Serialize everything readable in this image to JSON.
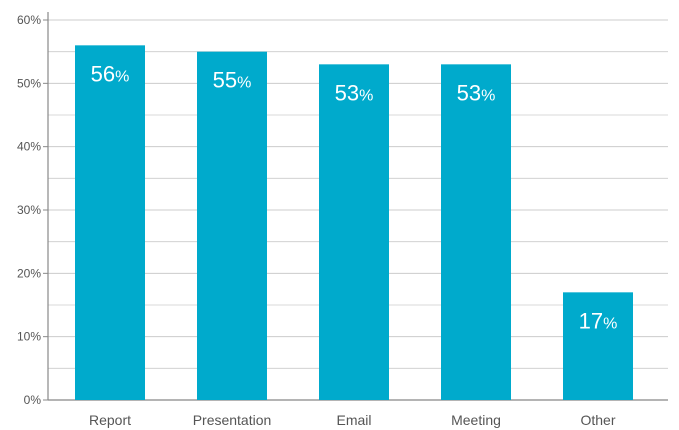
{
  "chart_data": {
    "type": "bar",
    "categories": [
      "Report",
      "Presentation",
      "Email",
      "Meeting",
      "Other"
    ],
    "values": [
      56,
      55,
      53,
      53,
      17
    ],
    "data_labels": [
      "56",
      "55",
      "53",
      "53",
      "17"
    ],
    "data_label_suffix": "%",
    "title": "",
    "xlabel": "",
    "ylabel": "",
    "ylim": [
      0,
      60
    ],
    "y_ticks": [
      0,
      10,
      20,
      30,
      40,
      50,
      60
    ],
    "y_tick_labels": [
      "0%",
      "10%",
      "20%",
      "30%",
      "40%",
      "50%",
      "60%"
    ],
    "grid": true,
    "minor_grid": true,
    "legend": "none",
    "colors": {
      "bar": "#00aacc",
      "grid": "#cccccc",
      "axis": "#888888",
      "text": "#555555",
      "data_label": "#ffffff"
    }
  }
}
